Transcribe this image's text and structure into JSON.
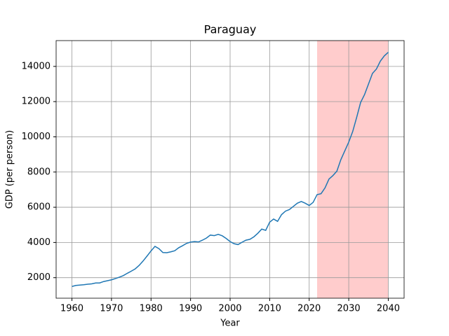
{
  "chart_data": {
    "type": "line",
    "title": "Paraguay",
    "xlabel": "Year",
    "ylabel": "GDP (per person)",
    "x": [
      1960,
      1961,
      1962,
      1963,
      1964,
      1965,
      1966,
      1967,
      1968,
      1969,
      1970,
      1971,
      1972,
      1973,
      1974,
      1975,
      1976,
      1977,
      1978,
      1979,
      1980,
      1981,
      1982,
      1983,
      1984,
      1985,
      1986,
      1987,
      1988,
      1989,
      1990,
      1991,
      1992,
      1993,
      1994,
      1995,
      1996,
      1997,
      1998,
      1999,
      2000,
      2001,
      2002,
      2003,
      2004,
      2005,
      2006,
      2007,
      2008,
      2009,
      2010,
      2011,
      2012,
      2013,
      2014,
      2015,
      2016,
      2017,
      2018,
      2019,
      2020,
      2021,
      2022,
      2023,
      2024,
      2025,
      2026,
      2027,
      2028,
      2029,
      2030,
      2031,
      2032,
      2033,
      2034,
      2035,
      2036,
      2037,
      2038,
      2039,
      2040
    ],
    "series": [
      {
        "color": "#1f77b4",
        "values": [
          1500,
          1560,
          1580,
          1600,
          1630,
          1650,
          1700,
          1700,
          1780,
          1830,
          1880,
          1950,
          2030,
          2120,
          2250,
          2370,
          2500,
          2700,
          2950,
          3230,
          3520,
          3780,
          3650,
          3430,
          3420,
          3470,
          3530,
          3700,
          3820,
          3950,
          4020,
          4050,
          4030,
          4130,
          4250,
          4420,
          4390,
          4460,
          4380,
          4230,
          4050,
          3930,
          3880,
          4010,
          4130,
          4180,
          4320,
          4520,
          4760,
          4690,
          5150,
          5330,
          5200,
          5580,
          5780,
          5870,
          6050,
          6230,
          6330,
          6230,
          6100,
          6280,
          6720,
          6770,
          7100,
          7600,
          7800,
          8050,
          8700,
          9200,
          9700,
          10300,
          11100,
          11950,
          12400,
          13000,
          13600,
          13850,
          14300,
          14600,
          14800
        ]
      }
    ],
    "highlight": {
      "x0": 2022,
      "x1": 2040,
      "color": "#ffcccc"
    },
    "xlim": [
      1956,
      2044
    ],
    "xticks": [
      1960,
      1970,
      1980,
      1990,
      2000,
      2010,
      2020,
      2030,
      2040
    ],
    "ylim": [
      835,
      15465
    ],
    "yticks": [
      2000,
      4000,
      6000,
      8000,
      10000,
      12000,
      14000
    ],
    "grid": true
  }
}
